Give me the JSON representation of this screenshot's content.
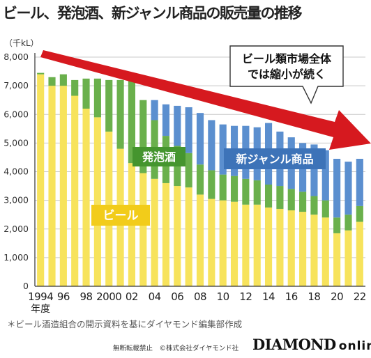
{
  "title": "ビール、発泡酒、新ジャンル商品の販売量の推移",
  "chart_data": {
    "type": "bar",
    "stacked": true,
    "ylabel": "（千kL）",
    "ylim": [
      0,
      8000
    ],
    "yticks": [
      0,
      1000,
      2000,
      3000,
      4000,
      5000,
      6000,
      7000,
      8000
    ],
    "ytick_labels": [
      "0",
      "1,000",
      "2,000",
      "3,000",
      "4,000",
      "5,000",
      "6,000",
      "7,000",
      "8,000"
    ],
    "years": [
      1994,
      1995,
      1996,
      1997,
      1998,
      1999,
      2000,
      2001,
      2002,
      2003,
      2004,
      2005,
      2006,
      2007,
      2008,
      2009,
      2010,
      2011,
      2012,
      2013,
      2014,
      2015,
      2016,
      2017,
      2018,
      2019,
      2020,
      2021,
      2022
    ],
    "xtick_labels": [
      "1994",
      "96",
      "98",
      "2000",
      "02",
      "04",
      "06",
      "08",
      "10",
      "12",
      "14",
      "16",
      "18",
      "20",
      "22"
    ],
    "xtick_years": [
      1994,
      1996,
      1998,
      2000,
      2002,
      2004,
      2006,
      2008,
      2010,
      2012,
      2014,
      2016,
      2018,
      2020,
      2022
    ],
    "xlabel": "年度",
    "series": [
      {
        "name": "ビール",
        "color": "#f7e35c",
        "values": [
          7400,
          7000,
          7000,
          6650,
          6200,
          5900,
          5400,
          4800,
          4300,
          3950,
          3750,
          3600,
          3500,
          3450,
          3200,
          3050,
          3000,
          2950,
          2850,
          2850,
          2750,
          2700,
          2650,
          2600,
          2500,
          2400,
          1850,
          1950,
          2250
        ]
      },
      {
        "name": "発泡酒",
        "color": "#6ab04c",
        "values": [
          50,
          300,
          400,
          550,
          1050,
          1350,
          1800,
          2400,
          2950,
          2550,
          2050,
          1650,
          1400,
          1200,
          1050,
          1000,
          900,
          900,
          900,
          850,
          800,
          800,
          750,
          700,
          650,
          600,
          550,
          550,
          550
        ]
      },
      {
        "name": "新ジャンル商品",
        "color": "#5b8fcf",
        "values": [
          0,
          0,
          0,
          0,
          0,
          0,
          0,
          0,
          0,
          0,
          700,
          1100,
          1400,
          1600,
          1800,
          1750,
          1750,
          1750,
          1850,
          1850,
          2150,
          1900,
          1800,
          1700,
          1800,
          1750,
          2050,
          1850,
          1650
        ]
      }
    ],
    "annotation": "ビール類市場全体\nでは縮小が続く"
  },
  "source_note": "＊ビール酒造組合の開示資料を基にダイヤモンド編集部作成",
  "copyright": "無断転載禁止　©株式会社ダイヤモンド社",
  "brand": {
    "main": "DIAMOND",
    "sub": "online"
  }
}
